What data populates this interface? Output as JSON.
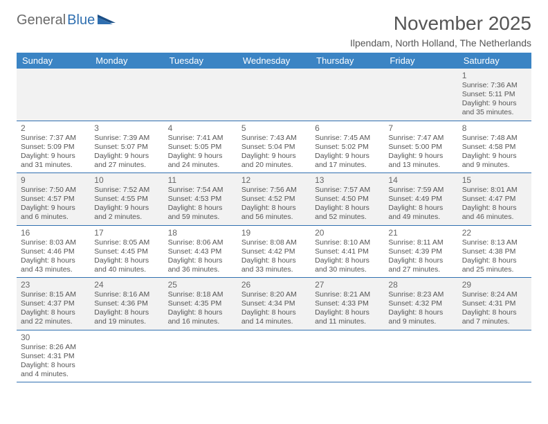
{
  "brand": {
    "part1": "General",
    "part2": "Blue"
  },
  "title": "November 2025",
  "subtitle": "Ilpendam, North Holland, The Netherlands",
  "calendar": {
    "type": "table",
    "header_bg": "#3b84c4",
    "header_fg": "#ffffff",
    "row_alt_bg": "#f2f2f2",
    "row_bg": "#ffffff",
    "row_divider": "#2f6fb0",
    "text_color": "#555555",
    "font_size_cell": 10.5,
    "font_size_daynum": 12,
    "font_size_header": 13,
    "font_size_title": 28,
    "font_size_subtitle": 14,
    "columns": [
      "Sunday",
      "Monday",
      "Tuesday",
      "Wednesday",
      "Thursday",
      "Friday",
      "Saturday"
    ],
    "weeks": [
      [
        null,
        null,
        null,
        null,
        null,
        null,
        {
          "n": "1",
          "sr": "7:36 AM",
          "ss": "5:11 PM",
          "dl": "9 hours and 35 minutes."
        }
      ],
      [
        {
          "n": "2",
          "sr": "7:37 AM",
          "ss": "5:09 PM",
          "dl": "9 hours and 31 minutes."
        },
        {
          "n": "3",
          "sr": "7:39 AM",
          "ss": "5:07 PM",
          "dl": "9 hours and 27 minutes."
        },
        {
          "n": "4",
          "sr": "7:41 AM",
          "ss": "5:05 PM",
          "dl": "9 hours and 24 minutes."
        },
        {
          "n": "5",
          "sr": "7:43 AM",
          "ss": "5:04 PM",
          "dl": "9 hours and 20 minutes."
        },
        {
          "n": "6",
          "sr": "7:45 AM",
          "ss": "5:02 PM",
          "dl": "9 hours and 17 minutes."
        },
        {
          "n": "7",
          "sr": "7:47 AM",
          "ss": "5:00 PM",
          "dl": "9 hours and 13 minutes."
        },
        {
          "n": "8",
          "sr": "7:48 AM",
          "ss": "4:58 PM",
          "dl": "9 hours and 9 minutes."
        }
      ],
      [
        {
          "n": "9",
          "sr": "7:50 AM",
          "ss": "4:57 PM",
          "dl": "9 hours and 6 minutes."
        },
        {
          "n": "10",
          "sr": "7:52 AM",
          "ss": "4:55 PM",
          "dl": "9 hours and 2 minutes."
        },
        {
          "n": "11",
          "sr": "7:54 AM",
          "ss": "4:53 PM",
          "dl": "8 hours and 59 minutes."
        },
        {
          "n": "12",
          "sr": "7:56 AM",
          "ss": "4:52 PM",
          "dl": "8 hours and 56 minutes."
        },
        {
          "n": "13",
          "sr": "7:57 AM",
          "ss": "4:50 PM",
          "dl": "8 hours and 52 minutes."
        },
        {
          "n": "14",
          "sr": "7:59 AM",
          "ss": "4:49 PM",
          "dl": "8 hours and 49 minutes."
        },
        {
          "n": "15",
          "sr": "8:01 AM",
          "ss": "4:47 PM",
          "dl": "8 hours and 46 minutes."
        }
      ],
      [
        {
          "n": "16",
          "sr": "8:03 AM",
          "ss": "4:46 PM",
          "dl": "8 hours and 43 minutes."
        },
        {
          "n": "17",
          "sr": "8:05 AM",
          "ss": "4:45 PM",
          "dl": "8 hours and 40 minutes."
        },
        {
          "n": "18",
          "sr": "8:06 AM",
          "ss": "4:43 PM",
          "dl": "8 hours and 36 minutes."
        },
        {
          "n": "19",
          "sr": "8:08 AM",
          "ss": "4:42 PM",
          "dl": "8 hours and 33 minutes."
        },
        {
          "n": "20",
          "sr": "8:10 AM",
          "ss": "4:41 PM",
          "dl": "8 hours and 30 minutes."
        },
        {
          "n": "21",
          "sr": "8:11 AM",
          "ss": "4:39 PM",
          "dl": "8 hours and 27 minutes."
        },
        {
          "n": "22",
          "sr": "8:13 AM",
          "ss": "4:38 PM",
          "dl": "8 hours and 25 minutes."
        }
      ],
      [
        {
          "n": "23",
          "sr": "8:15 AM",
          "ss": "4:37 PM",
          "dl": "8 hours and 22 minutes."
        },
        {
          "n": "24",
          "sr": "8:16 AM",
          "ss": "4:36 PM",
          "dl": "8 hours and 19 minutes."
        },
        {
          "n": "25",
          "sr": "8:18 AM",
          "ss": "4:35 PM",
          "dl": "8 hours and 16 minutes."
        },
        {
          "n": "26",
          "sr": "8:20 AM",
          "ss": "4:34 PM",
          "dl": "8 hours and 14 minutes."
        },
        {
          "n": "27",
          "sr": "8:21 AM",
          "ss": "4:33 PM",
          "dl": "8 hours and 11 minutes."
        },
        {
          "n": "28",
          "sr": "8:23 AM",
          "ss": "4:32 PM",
          "dl": "8 hours and 9 minutes."
        },
        {
          "n": "29",
          "sr": "8:24 AM",
          "ss": "4:31 PM",
          "dl": "8 hours and 7 minutes."
        }
      ],
      [
        {
          "n": "30",
          "sr": "8:26 AM",
          "ss": "4:31 PM",
          "dl": "8 hours and 4 minutes."
        },
        null,
        null,
        null,
        null,
        null,
        null
      ]
    ]
  },
  "labels": {
    "sunrise": "Sunrise: ",
    "sunset": "Sunset: ",
    "daylight": "Daylight: "
  }
}
